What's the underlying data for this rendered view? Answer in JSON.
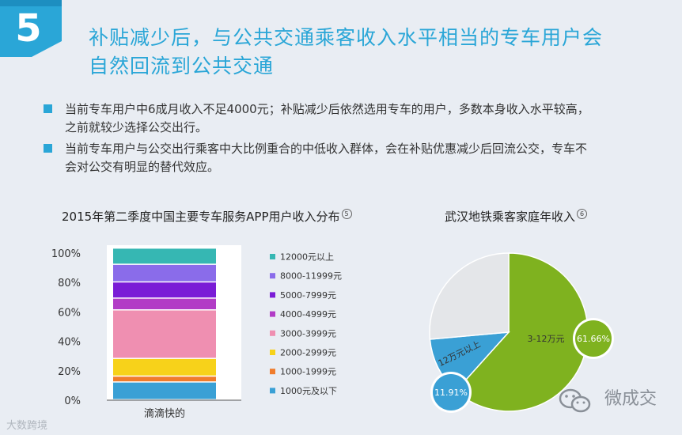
{
  "badge": {
    "number": "5",
    "color": "#2aa6d7"
  },
  "headline": {
    "line1": "补贴减少后，与公共交通乘客收入水平相当的专车用户会",
    "line2": "自然回流到公共交通"
  },
  "bullets": [
    {
      "line1": "当前专车用户中6成月收入不足4000元；补贴减少后依然选用专车的用户，多数本身收入水平较高，",
      "line2": "之前就较少选择公交出行。"
    },
    {
      "line1": "当前专车用户与公交出行乘客中大比例重合的中低收入群体，会在补贴优惠减少后回流公交，专车不",
      "line2": "会对公交有明显的替代效应。"
    }
  ],
  "chart_data": [
    {
      "type": "bar",
      "stacked": true,
      "title": "2015年第二季度中国主要专车服务APP用户收入分布",
      "note": "5",
      "categories": [
        "滴滴快的"
      ],
      "ylim": [
        0,
        100
      ],
      "yticks": [
        "0%",
        "20%",
        "40%",
        "60%",
        "80%",
        "100%"
      ],
      "series": [
        {
          "name": "1000元及以下",
          "values": [
            12
          ],
          "color": "#3aa0d5"
        },
        {
          "name": "1000-1999元",
          "values": [
            4
          ],
          "color": "#f07c2c"
        },
        {
          "name": "2000-2999元",
          "values": [
            12
          ],
          "color": "#f7d21a"
        },
        {
          "name": "3000-3999元",
          "values": [
            33
          ],
          "color": "#ef8fb1"
        },
        {
          "name": "4000-4999元",
          "values": [
            8
          ],
          "color": "#b23cc6"
        },
        {
          "name": "5000-7999元",
          "values": [
            11
          ],
          "color": "#7a1cd6"
        },
        {
          "name": "8000-11999元",
          "values": [
            12
          ],
          "color": "#8a6cea"
        },
        {
          "name": "12000元以上",
          "values": [
            11
          ],
          "color": "#36b7b3"
        }
      ],
      "legend_position": "right"
    },
    {
      "type": "pie",
      "title": "武汉地铁乘客家庭年收入",
      "note": "6",
      "slices": [
        {
          "name": "3-12万元",
          "value": 61.66,
          "label": "61.66%",
          "color": "#7fb21f"
        },
        {
          "name": "12万元以上",
          "value": 11.91,
          "label": "11.91%",
          "color": "#3aa0d5"
        },
        {
          "name": "",
          "value": 26.43,
          "label": "",
          "color": "#e4e6e9"
        }
      ]
    }
  ],
  "watermark": "微成交",
  "source": "大数跨境"
}
